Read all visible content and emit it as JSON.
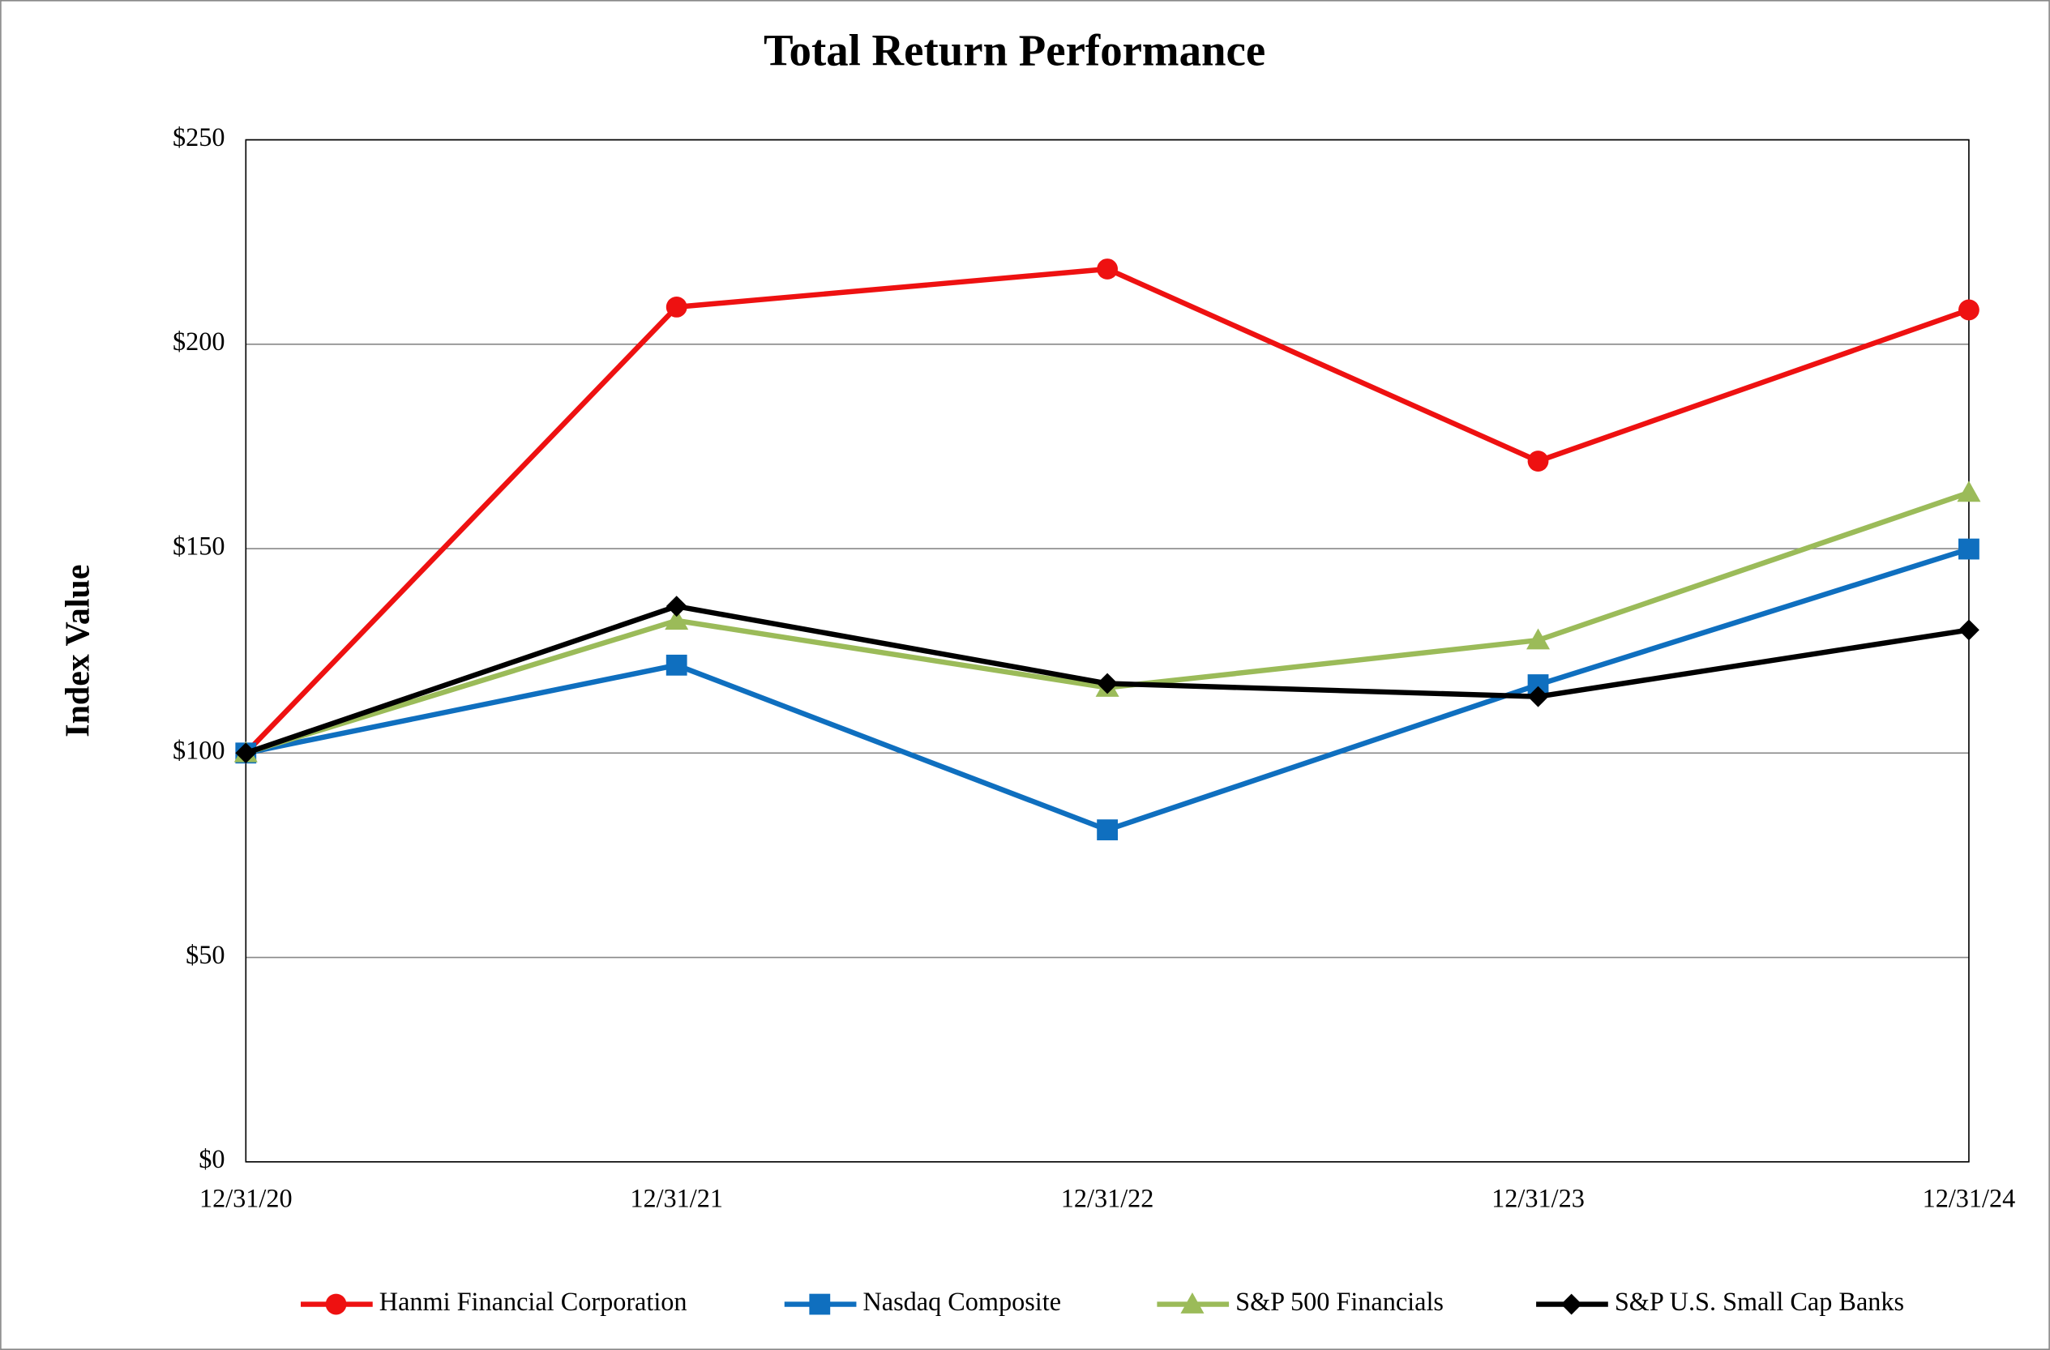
{
  "chart_data": {
    "type": "line",
    "title": "Total Return Performance",
    "y_label": "Index Value",
    "categories": [
      "12/31/20",
      "12/31/21",
      "12/31/22",
      "12/31/23",
      "12/31/24"
    ],
    "series": [
      {
        "name": "Hanmi Financial Corporation",
        "color": "#ee1111",
        "marker": "circle",
        "values": [
          100,
          209.1,
          218.4,
          171.4,
          208.4
        ]
      },
      {
        "name": "Nasdaq Composite",
        "color": "#0f6fbf",
        "marker": "square",
        "values": [
          100,
          121.5,
          81.2,
          116.7,
          149.9
        ]
      },
      {
        "name": "S&P 500 Financials",
        "color": "#9bbb59",
        "marker": "triangle",
        "values": [
          100,
          132.4,
          116.0,
          127.6,
          163.7
        ]
      },
      {
        "name": "S&P U.S. Small Cap Banks",
        "color": "#000000",
        "marker": "diamond",
        "values": [
          100,
          135.9,
          117.0,
          113.8,
          130.1
        ]
      }
    ],
    "ylim": [
      0,
      250
    ],
    "yticks": [
      {
        "value": 0,
        "label": "$0"
      },
      {
        "value": 50,
        "label": "$50"
      },
      {
        "value": 100,
        "label": "$100"
      },
      {
        "value": 150,
        "label": "$150"
      },
      {
        "value": 200,
        "label": "$200"
      },
      {
        "value": 250,
        "label": "$250"
      }
    ],
    "grid": true,
    "legend": "bottom"
  }
}
